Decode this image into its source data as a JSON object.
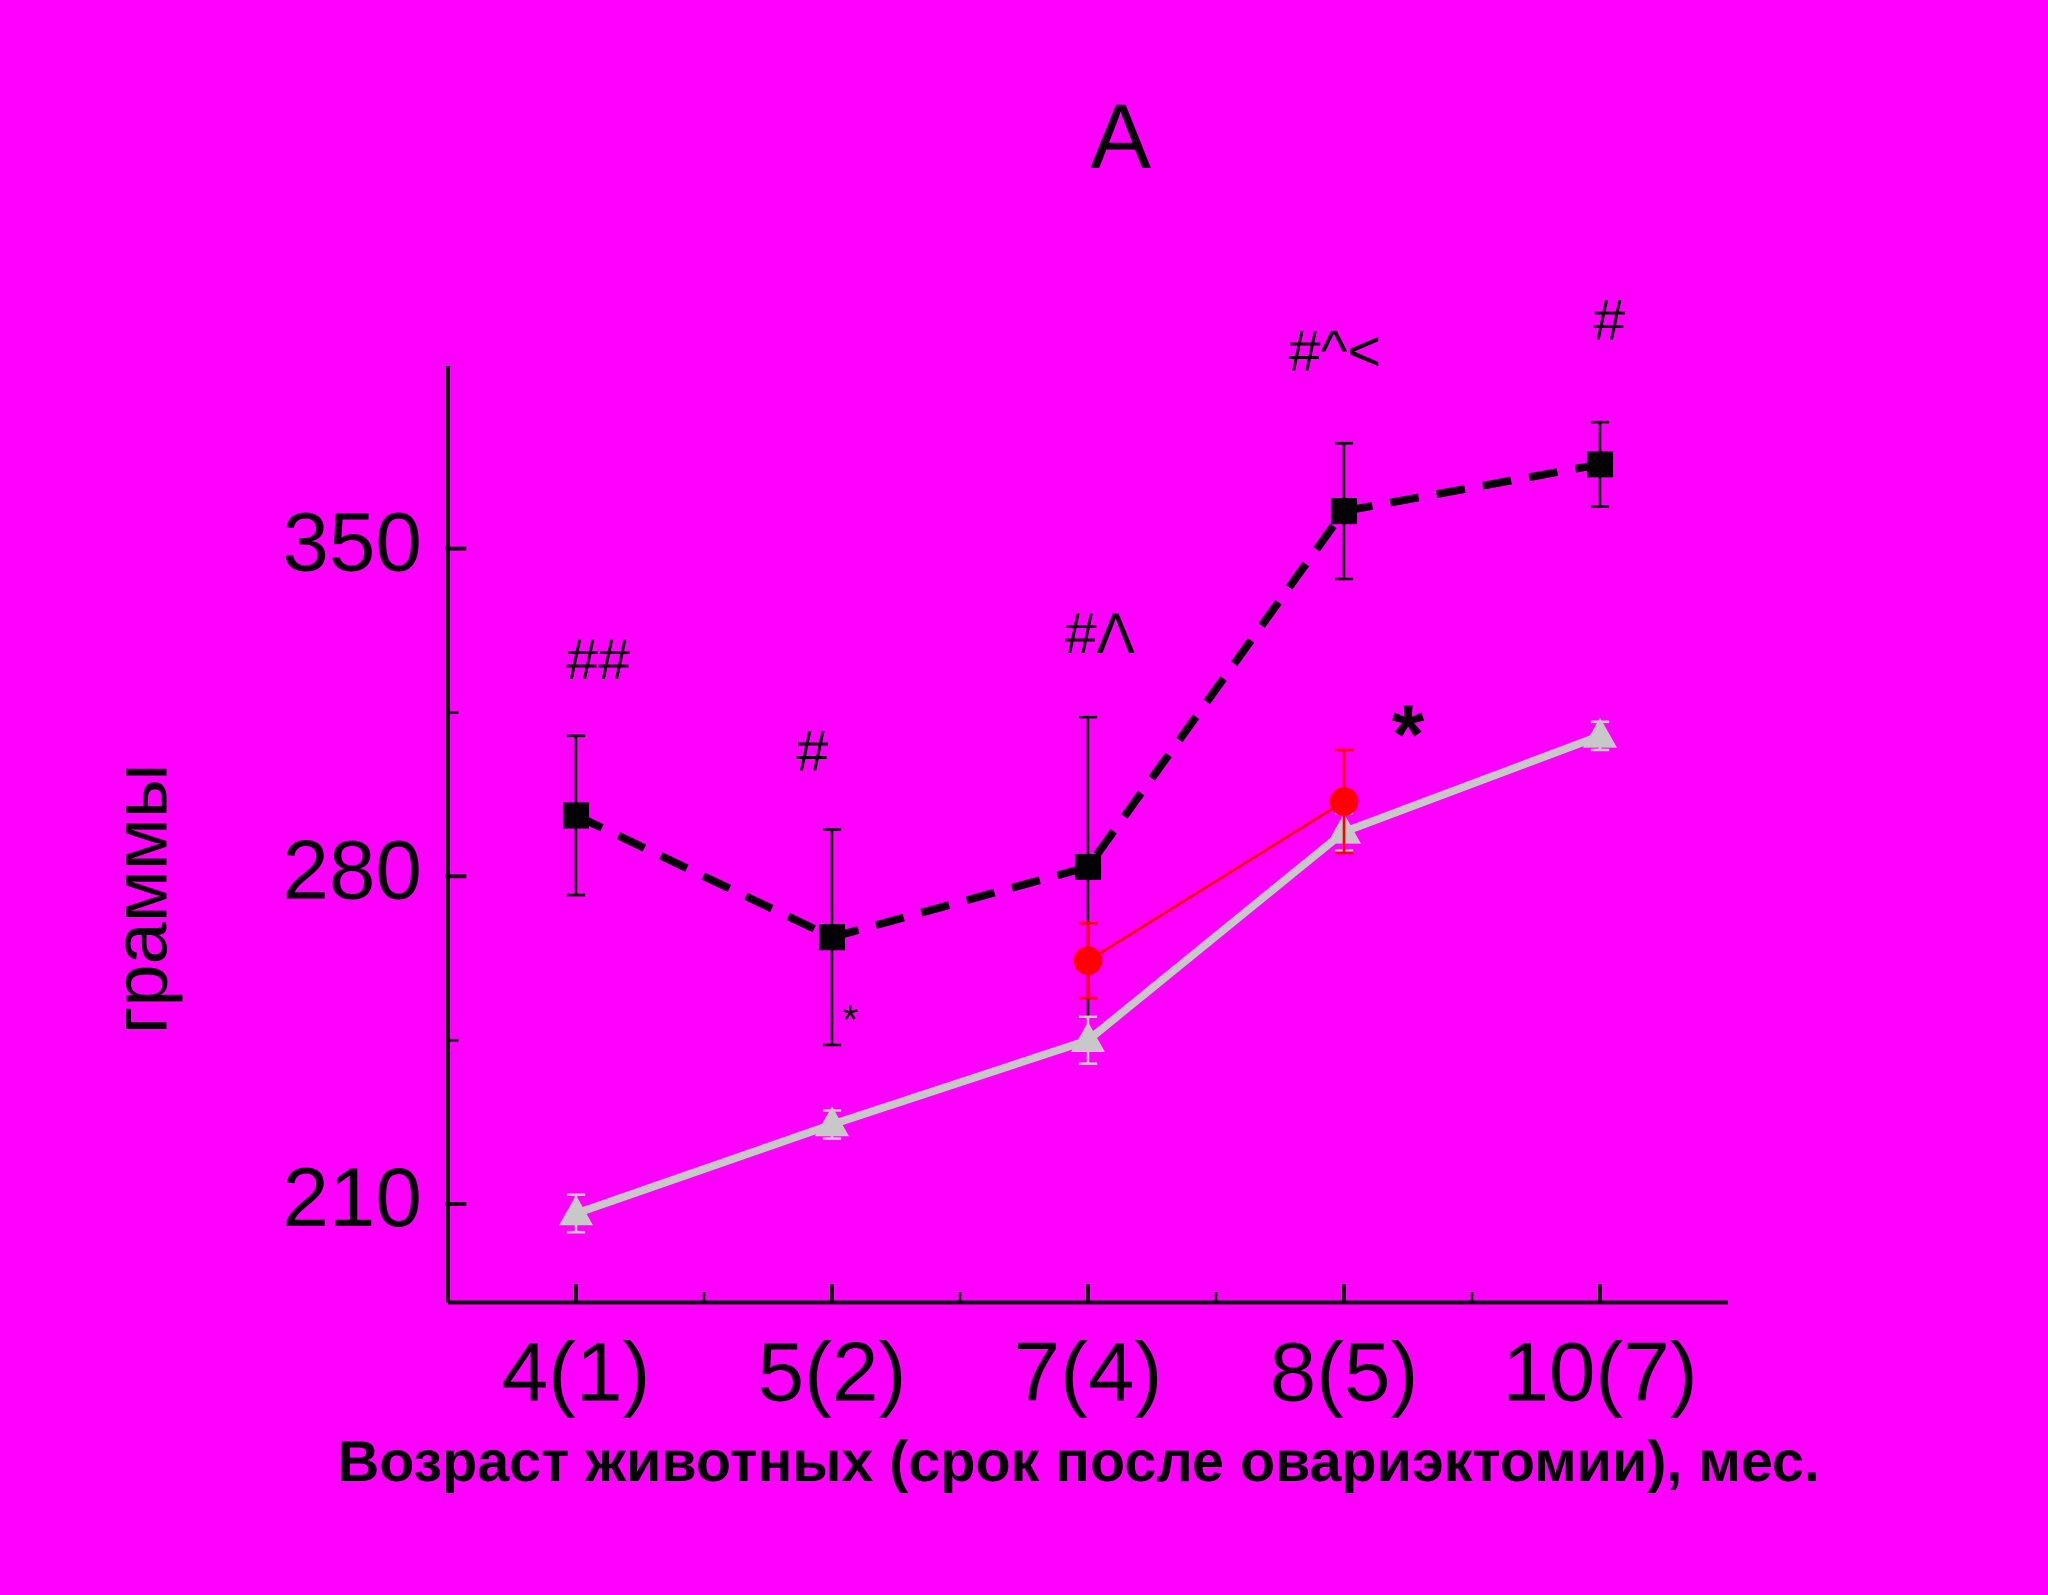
{
  "chart_data": {
    "type": "line",
    "title": "A",
    "xlabel": "Возраст животных (срок после овариэктомии), мес.",
    "ylabel": "граммы",
    "categories": [
      "4(1)",
      "5(2)",
      "7(4)",
      "8(5)",
      "10(7)"
    ],
    "ylim": [
      189,
      389
    ],
    "yticks": [
      210,
      280,
      350
    ],
    "yminorticks": [
      245,
      315
    ],
    "series": [
      {
        "color": "#000000",
        "marker": "square",
        "linestyle": "dashed",
        "values": [
          293,
          267,
          282,
          358,
          368
        ],
        "errors": [
          17,
          23,
          32,
          14.5,
          9
        ]
      },
      {
        "color": "#c8c8c8",
        "marker": "triangle",
        "linestyle": "solid",
        "values": [
          208,
          227,
          245,
          289.5,
          310
        ],
        "errors": [
          4,
          3,
          5,
          4,
          3
        ]
      },
      {
        "color": "#ff0000",
        "marker": "circle",
        "linestyle": "thin",
        "values": [
          null,
          null,
          262,
          296,
          null
        ],
        "errors": [
          null,
          null,
          8,
          11,
          null
        ]
      }
    ],
    "annotations": [
      "##",
      "#",
      "*",
      "#Λ",
      "#^<",
      "*",
      "#"
    ]
  }
}
